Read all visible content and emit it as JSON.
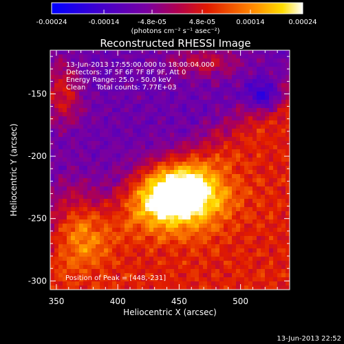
{
  "chart_data": {
    "type": "heatmap",
    "title": "Reconstructed RHESSI Image",
    "xlabel": "Heliocentric X (arcsec)",
    "ylabel": "Heliocentric Y (arcsec)",
    "xlim": [
      345,
      540
    ],
    "ylim": [
      -307,
      -115
    ],
    "x_ticks": [
      350,
      400,
      450,
      500
    ],
    "y_ticks": [
      -150,
      -200,
      -250,
      -300
    ],
    "colorbar": {
      "min": -0.00024,
      "max": 0.00024,
      "tick_values": [
        -0.00024,
        -0.00014,
        -4.8e-05,
        4.8e-05,
        0.00014,
        0.00024
      ],
      "tick_labels": [
        "-0.00024",
        "-0.00014",
        "-4.8e-05",
        "4.8e-05",
        "0.00014",
        "0.00024"
      ],
      "unit_label": "(photons cm⁻² s⁻¹ asec⁻²)"
    },
    "annotations": [
      "13-Jun-2013 17:55:00.000 to 18:00:04.000",
      "Detectors: 3F 5F 6F 7F 8F 9F, Att 0",
      "Energy Range: 25.0 - 50.0 keV",
      "Clean     Total counts: 7.77E+03"
    ],
    "peak_label": "Position of Peak = [448,-231]",
    "peak": [
      448,
      -231
    ],
    "timestamp": "13-Jun-2013 22:52"
  },
  "colors": {
    "background": "#000000",
    "text": "#ffffff"
  }
}
